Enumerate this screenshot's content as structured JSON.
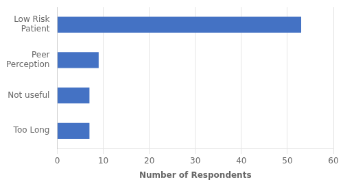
{
  "chart_data": {
    "type": "bar",
    "orientation": "horizontal",
    "categories": [
      "Low Risk\nPatient",
      "Peer\nPerception",
      "Not useful",
      "Too Long"
    ],
    "values": [
      53,
      9,
      7,
      7
    ],
    "color": "#4472C4",
    "xlabel": "Number of Respondents",
    "xlim": [
      0,
      60
    ],
    "xticks": [
      0,
      10,
      20,
      30,
      40,
      50,
      60
    ],
    "grid": true
  }
}
